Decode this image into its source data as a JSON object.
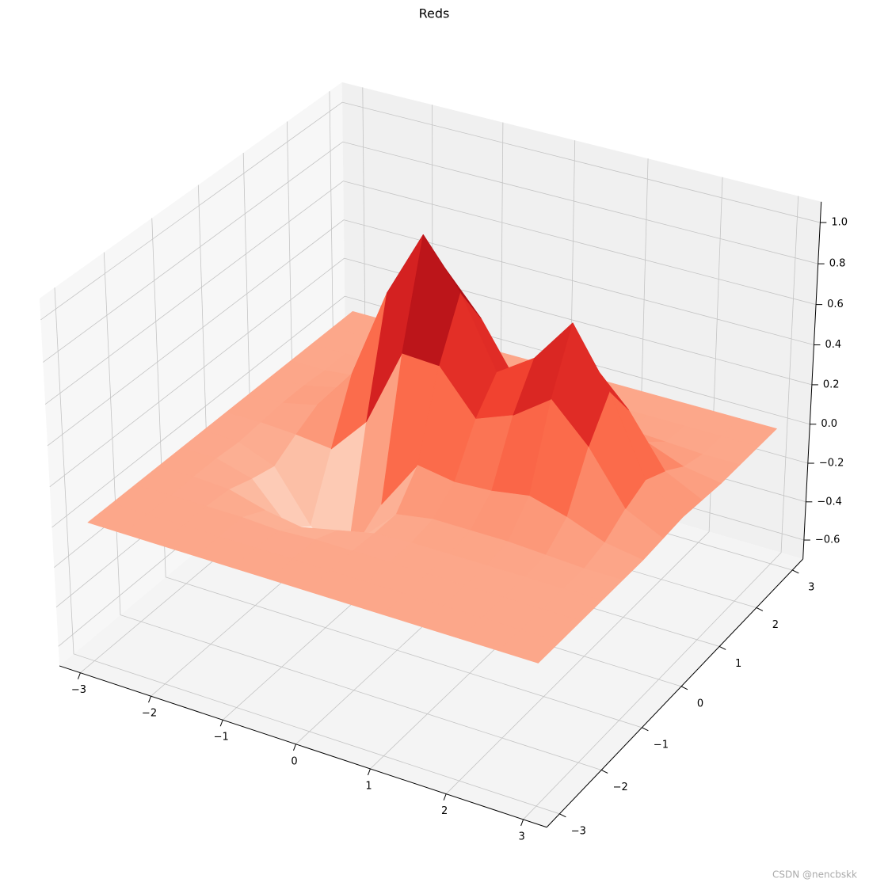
{
  "chart_data": {
    "type": "surface",
    "title": "Reds",
    "colormap": "Reds",
    "x": [
      -3,
      -2.5,
      -2,
      -1.5,
      -1,
      -0.5,
      0,
      0.5,
      1,
      1.5,
      2,
      2.5,
      3
    ],
    "y": [
      -3,
      -2.5,
      -2,
      -1.5,
      -1,
      -0.5,
      0,
      0.5,
      1,
      1.5,
      2,
      2.5,
      3
    ],
    "z": [
      [
        0,
        0,
        0,
        0,
        0,
        0,
        0,
        0,
        0,
        0,
        0,
        0,
        0
      ],
      [
        0,
        0,
        0,
        0,
        0,
        0,
        0,
        0,
        0,
        0,
        0,
        0,
        0
      ],
      [
        0,
        0,
        0,
        0,
        -0.01,
        0,
        0,
        0,
        0,
        0,
        0,
        0,
        0
      ],
      [
        0,
        0,
        -0.01,
        -0.06,
        -0.09,
        -0.05,
        -0.01,
        0,
        0,
        0,
        0,
        0,
        0
      ],
      [
        0,
        0,
        -0.05,
        -0.24,
        -0.38,
        -0.19,
        -0.01,
        0.02,
        0.02,
        0.02,
        0.01,
        0,
        0
      ],
      [
        0,
        -0.01,
        -0.08,
        -0.33,
        -0.47,
        -0.11,
        0.14,
        0.11,
        0.12,
        0.15,
        0.1,
        0.03,
        0
      ],
      [
        0,
        0,
        -0.01,
        -0.03,
        0.16,
        0.55,
        0.54,
        0.33,
        0.4,
        0.53,
        0.35,
        0.1,
        0.01
      ],
      [
        0,
        0.01,
        0.05,
        0.26,
        0.71,
        1.04,
        0.81,
        0.47,
        0.59,
        0.81,
        0.53,
        0.15,
        0.02
      ],
      [
        0,
        0.01,
        0.05,
        0.23,
        0.58,
        0.8,
        0.6,
        0.33,
        0.4,
        0.53,
        0.35,
        0.1,
        0.01
      ],
      [
        0,
        0,
        0.02,
        0.09,
        0.23,
        0.32,
        0.23,
        0.12,
        0.12,
        0.15,
        0.1,
        0.03,
        0
      ],
      [
        0,
        0,
        0,
        0.02,
        0.05,
        0.07,
        0.05,
        0.02,
        0.02,
        0.02,
        0.01,
        0,
        0
      ],
      [
        0,
        0,
        0,
        0,
        0.01,
        0.01,
        0.01,
        0,
        0,
        0,
        0,
        0,
        0
      ],
      [
        0,
        0,
        0,
        0,
        0,
        0,
        0,
        0,
        0,
        0,
        0,
        0,
        0
      ]
    ],
    "xlim": [
      -3.3,
      3.3
    ],
    "ylim": [
      -3.3,
      3.3
    ],
    "zlim": [
      -0.7,
      1.1
    ],
    "xticks": [
      {
        "value": -3,
        "label": "−3"
      },
      {
        "value": -2,
        "label": "−2"
      },
      {
        "value": -1,
        "label": "−1"
      },
      0,
      1,
      2,
      3
    ],
    "yticks": [
      {
        "value": -3,
        "label": "−3"
      },
      {
        "value": -2,
        "label": "−2"
      },
      {
        "value": -1,
        "label": "−1"
      },
      0,
      1,
      2,
      3
    ],
    "zticks": [
      {
        "value": -0.6,
        "label": "−0.6"
      },
      {
        "value": -0.4,
        "label": "−0.4"
      },
      {
        "value": -0.2,
        "label": "−0.2"
      },
      {
        "value": 0,
        "label": "0.0"
      },
      {
        "value": 0.2,
        "label": "0.2"
      },
      {
        "value": 0.4,
        "label": "0.4"
      },
      {
        "value": 0.6,
        "label": "0.6"
      },
      {
        "value": 0.8,
        "label": "0.8"
      },
      {
        "value": 1.0,
        "label": "1.0"
      }
    ],
    "grid": true,
    "watermark": "CSDN @nencbskk"
  }
}
